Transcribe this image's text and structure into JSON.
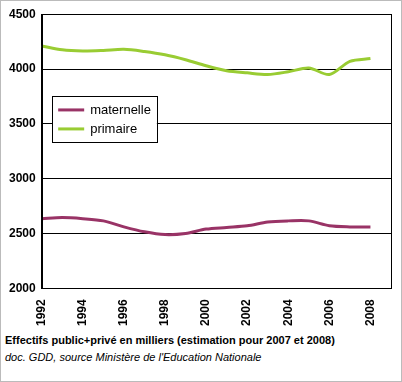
{
  "chart_data": {
    "type": "line",
    "title": "Effectifs public+privé en milliers (estimation pour 2007 et 2008)",
    "subtitle": "doc. GDD, source Ministère de l'Education Nationale",
    "x": [
      1992,
      1993,
      1994,
      1995,
      1996,
      1997,
      1998,
      1999,
      2000,
      2001,
      2002,
      2003,
      2004,
      2005,
      2006,
      2007,
      2008
    ],
    "series": [
      {
        "name": "maternelle",
        "color": "#993366",
        "values": [
          2635,
          2645,
          2635,
          2615,
          2560,
          2515,
          2490,
          2500,
          2540,
          2555,
          2570,
          2605,
          2615,
          2615,
          2570,
          2560,
          2560
        ]
      },
      {
        "name": "primaire",
        "color": "#99cc33",
        "values": [
          4210,
          4175,
          4165,
          4170,
          4180,
          4160,
          4130,
          4085,
          4030,
          3985,
          3965,
          3950,
          3975,
          4010,
          3950,
          4070,
          4095
        ]
      }
    ],
    "xlim": [
      1992,
      2009
    ],
    "xticks": [
      1992,
      1994,
      1996,
      1998,
      2000,
      2002,
      2004,
      2006,
      2008
    ],
    "ylim": [
      2000,
      4500
    ],
    "yticks": [
      2000,
      2500,
      3000,
      3500,
      4000,
      4500
    ],
    "grid": true,
    "legend": "left",
    "marker": "none"
  }
}
